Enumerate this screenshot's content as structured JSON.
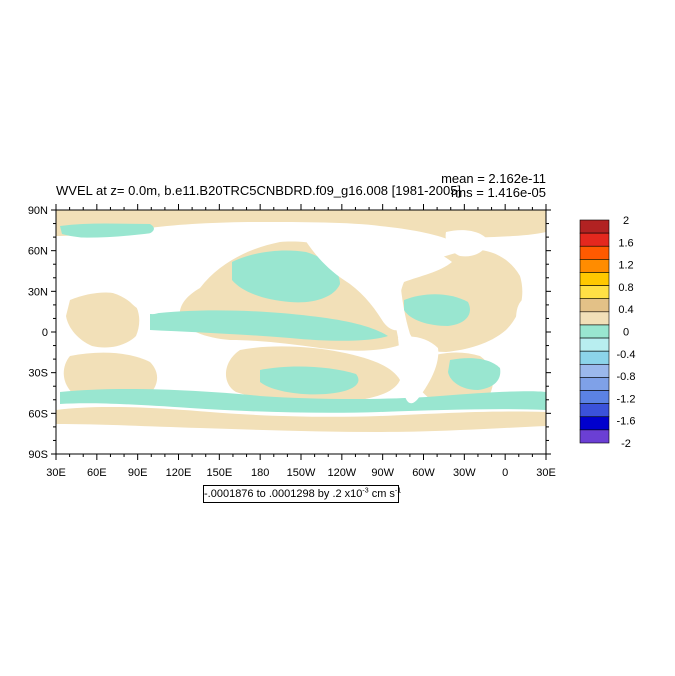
{
  "title": {
    "main": "WVEL at z=    0.0m, b.e11.B20TRC5CNBDRD.f09_g16.008 [1981-2005]",
    "mean": "mean = 2.162e-11",
    "rms": "rms = 1.416e-05"
  },
  "range_label": {
    "prefix": "-.0001876 to .0001298 by .2 x10",
    "exp1": "-3",
    "unit": " cm s",
    "exp2": "-1"
  },
  "axes": {
    "y_ticks": [
      "90N",
      "60N",
      "30N",
      "0",
      "30S",
      "60S",
      "90S"
    ],
    "x_ticks": [
      "30E",
      "60E",
      "90E",
      "120E",
      "150E",
      "180",
      "150W",
      "120W",
      "90W",
      "60W",
      "30W",
      "0",
      "30E"
    ]
  },
  "colorbar": {
    "labels": [
      "2",
      "1.6",
      "1.2",
      "0.8",
      "0.4",
      "0",
      "-0.4",
      "-0.8",
      "-1.2",
      "-1.6",
      "-2"
    ],
    "colors": [
      "#b22222",
      "#e4281e",
      "#ff5a00",
      "#ff8c00",
      "#ffc800",
      "#ffe045",
      "#e3c187",
      "#f2e0b8",
      "#99e6d0",
      "#b8eef0",
      "#8cd4ea",
      "#9bb8ec",
      "#7fa1e8",
      "#5b82e4",
      "#3b52da",
      "#0000cd",
      "#6b3fd4"
    ]
  },
  "map_colors": {
    "positive": "#f2e0b8",
    "negative": "#99e6d0",
    "land": "#ffffff"
  }
}
